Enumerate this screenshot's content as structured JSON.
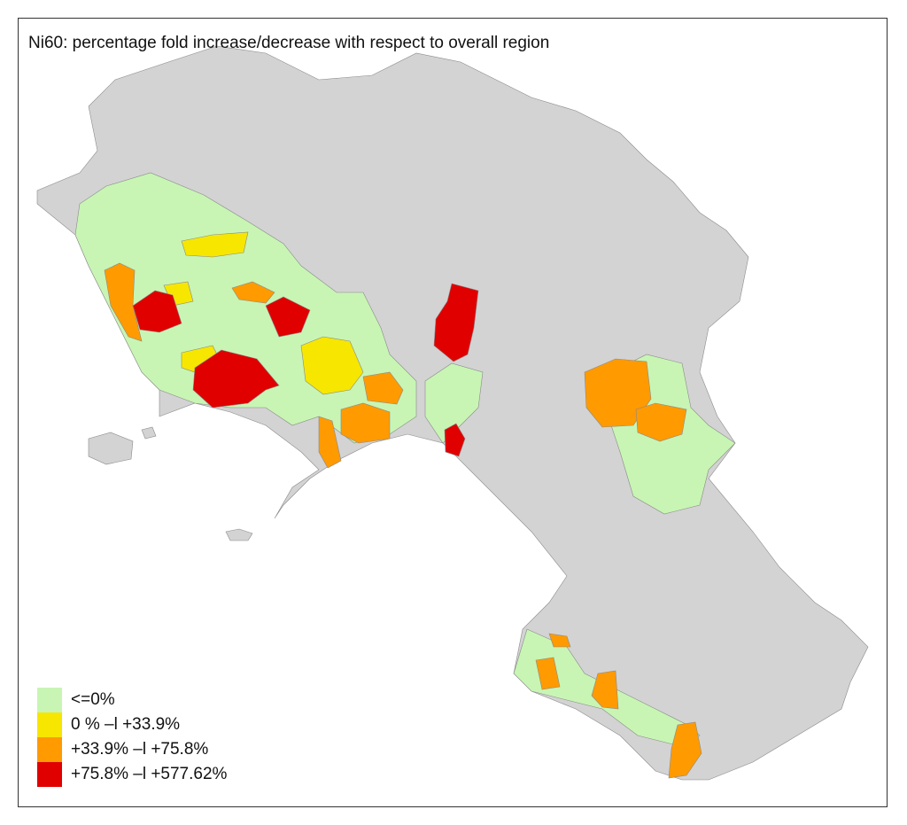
{
  "title": "Ni60: percentage fold increase/decrease with respect to overall region",
  "base_color": "#d3d3d3",
  "border_color": "#888888",
  "legend": [
    {
      "label": "<=0%",
      "color": "#c8f5b4"
    },
    {
      "label": "0 % –l +33.9%",
      "color": "#f7e600"
    },
    {
      "label": "+33.9% –l +75.8%",
      "color": "#ff9a00"
    },
    {
      "label": "+75.8% –l +577.62%",
      "color": "#e00000"
    }
  ]
}
